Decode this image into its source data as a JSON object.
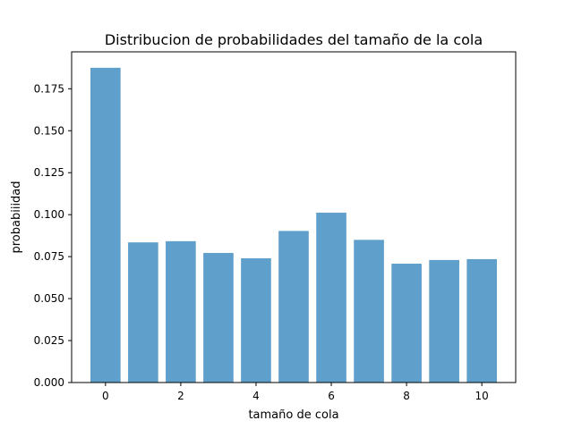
{
  "chart_data": {
    "type": "bar",
    "title": "Distribucion de probabilidades del tamaño de la cola",
    "xlabel": "tamaño de cola",
    "ylabel": "probabiiidad",
    "x": [
      0,
      1,
      2,
      3,
      4,
      5,
      6,
      7,
      8,
      9,
      10
    ],
    "values": [
      0.1875,
      0.0835,
      0.0842,
      0.0772,
      0.074,
      0.0903,
      0.1012,
      0.085,
      0.0708,
      0.073,
      0.0735
    ],
    "xlim": [
      -0.9,
      10.9
    ],
    "ylim": [
      0,
      0.197
    ],
    "xticks": [
      0,
      2,
      4,
      6,
      8,
      10
    ],
    "xtick_labels": [
      "0",
      "2",
      "4",
      "6",
      "8",
      "10"
    ],
    "yticks": [
      0.0,
      0.025,
      0.05,
      0.075,
      0.1,
      0.125,
      0.15,
      0.175
    ],
    "ytick_labels": [
      "0.000",
      "0.025",
      "0.050",
      "0.075",
      "0.100",
      "0.125",
      "0.150",
      "0.175"
    ],
    "bar_color": "#5f9fcb",
    "grid": false,
    "legend": "none"
  }
}
